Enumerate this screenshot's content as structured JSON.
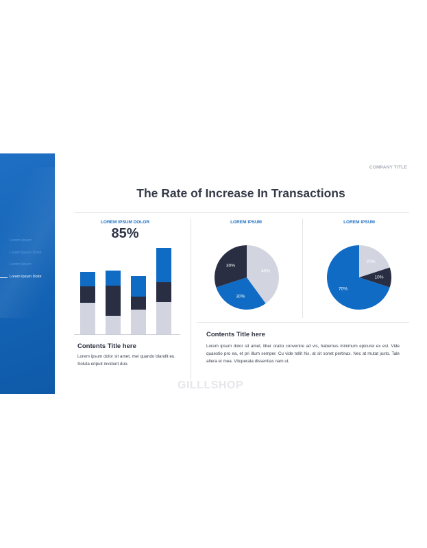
{
  "company": "COMPANY TITLE",
  "title": "The Rate of Increase In Transactions",
  "sidebar": {
    "items": [
      {
        "label": "Lorem Ipsum",
        "active": false
      },
      {
        "label": "Lorem Ipsum Dolor",
        "active": false
      },
      {
        "label": "Lorem Ipsum",
        "active": false
      },
      {
        "label": "Lorem Ipsum Dolor",
        "active": true
      }
    ]
  },
  "left_panel": {
    "label": "LOREM IPSUM DOLOR",
    "percent": "85%",
    "content_title": "Contents Title here",
    "content_text": "Lorem ipsum dolor sit amet, mei quando blandit eu. Soluta eripuit invidunt duo."
  },
  "pie1": {
    "label": "LOREM IPSUM"
  },
  "pie2": {
    "label": "LOREM IPSUM"
  },
  "right_panel": {
    "content_title": "Contents Title here",
    "content_text": "Lorem ipsum dolor sit amet, liber oratio convenire ad vis, habemus minimum epicurei ex est. Vide quaestio pro ea, et pri illum semper. Cu vide tollit his, at sit sonet pertinax. Nec at mutat justo. Tale altera et mea. Vituperata dissentias nam ut."
  },
  "watermark": "GILLLSHOP",
  "colors": {
    "blue": "#0f6bc4",
    "navy": "#2a2e42",
    "light": "#d2d5e0"
  },
  "chart_data": [
    {
      "type": "bar",
      "stacked": true,
      "categories": [
        "",
        "",
        "",
        ""
      ],
      "series": [
        {
          "color": "#d2d5e0",
          "values": [
            30,
            18,
            24,
            31
          ]
        },
        {
          "color": "#2a2e42",
          "values": [
            16,
            29,
            12,
            19
          ]
        },
        {
          "color": "#0f6bc4",
          "values": [
            14,
            14,
            20,
            33
          ]
        }
      ],
      "ylim": [
        0,
        83
      ]
    },
    {
      "type": "pie",
      "labels": [
        "40%",
        "30%",
        "30%"
      ],
      "values": [
        40,
        30,
        30
      ],
      "colors": [
        "#d2d5e0",
        "#0f6bc4",
        "#2a2e42"
      ]
    },
    {
      "type": "pie",
      "labels": [
        "20%",
        "10%",
        "70%"
      ],
      "values": [
        20,
        10,
        70
      ],
      "colors": [
        "#d2d5e0",
        "#2a2e42",
        "#0f6bc4"
      ]
    }
  ]
}
